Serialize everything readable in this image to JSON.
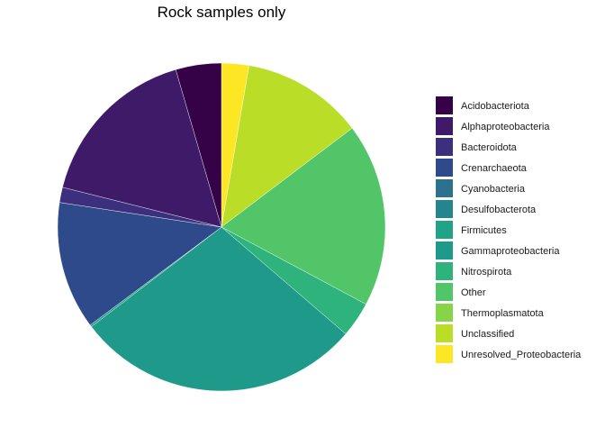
{
  "chart_data": {
    "type": "pie",
    "title": "Rock samples only",
    "legend_position": "right",
    "start_angle": "12 o'clock",
    "direction": "clockwise",
    "slices": [
      {
        "label": "Unresolved_Proteobacteria",
        "value": 2.7,
        "color": "#FDE725"
      },
      {
        "label": "Unclassified",
        "value": 12.0,
        "color": "#BADE28"
      },
      {
        "label": "Thermoplasmatota",
        "value": 0.0,
        "color": "#86D549"
      },
      {
        "label": "Other",
        "value": 18.1,
        "color": "#52C569"
      },
      {
        "label": "Nitrospirota",
        "value": 3.5,
        "color": "#2EB37C"
      },
      {
        "label": "Gammaproteobacteria",
        "value": 28.3,
        "color": "#1F9A8A"
      },
      {
        "label": "Firmicutes",
        "value": 0.2,
        "color": "#20A386"
      },
      {
        "label": "Desulfobacterota",
        "value": 0.0,
        "color": "#25848E"
      },
      {
        "label": "Cyanobacteria",
        "value": 0.0,
        "color": "#2C728E"
      },
      {
        "label": "Crenarchaeota",
        "value": 12.6,
        "color": "#2F4A8B"
      },
      {
        "label": "Bacteroidota",
        "value": 1.5,
        "color": "#3B2F7E"
      },
      {
        "label": "Alphaproteobacteria",
        "value": 16.6,
        "color": "#3E1A68"
      },
      {
        "label": "Acidobacteriota",
        "value": 4.5,
        "color": "#350147"
      }
    ],
    "legend": [
      {
        "label": "Acidobacteriota",
        "color": "#350147"
      },
      {
        "label": "Alphaproteobacteria",
        "color": "#3E1A68"
      },
      {
        "label": "Bacteroidota",
        "color": "#3B2F7E"
      },
      {
        "label": "Crenarchaeota",
        "color": "#2F4A8B"
      },
      {
        "label": "Cyanobacteria",
        "color": "#2C728E"
      },
      {
        "label": "Desulfobacterota",
        "color": "#25848E"
      },
      {
        "label": "Firmicutes",
        "color": "#20A386"
      },
      {
        "label": "Gammaproteobacteria",
        "color": "#1F9A8A"
      },
      {
        "label": "Nitrospirota",
        "color": "#2EB37C"
      },
      {
        "label": "Other",
        "color": "#52C569"
      },
      {
        "label": "Thermoplasmatota",
        "color": "#86D549"
      },
      {
        "label": "Unclassified",
        "color": "#BADE28"
      },
      {
        "label": "Unresolved_Proteobacteria",
        "color": "#FDE725"
      }
    ]
  }
}
